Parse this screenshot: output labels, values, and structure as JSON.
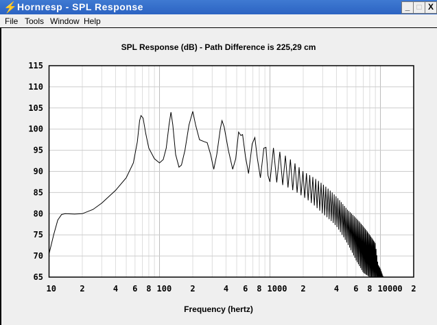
{
  "window": {
    "title": "Hornresp - SPL Response",
    "min": "_",
    "max": "□",
    "close": "X",
    "icon": "lightning-icon"
  },
  "menu": [
    "File",
    "Tools",
    "Window",
    "Help"
  ],
  "chart_data": {
    "type": "line",
    "title": "SPL Response (dB) - Path Difference is 225,29 cm",
    "xlabel": "Frequency (hertz)",
    "ylabel": "",
    "xscale": "log",
    "xlim": [
      10,
      20000
    ],
    "ylim": [
      65,
      115
    ],
    "yticks": [
      "115",
      "110",
      "105",
      "100",
      "95",
      "90",
      "85",
      "80",
      "75",
      "70",
      "65"
    ],
    "xticks": [
      {
        "f": 10,
        "label": "10"
      },
      {
        "f": 20,
        "label": "2"
      },
      {
        "f": 40,
        "label": "4"
      },
      {
        "f": 60,
        "label": "6"
      },
      {
        "f": 80,
        "label": "8"
      },
      {
        "f": 100,
        "label": "100"
      },
      {
        "f": 200,
        "label": "2"
      },
      {
        "f": 400,
        "label": "4"
      },
      {
        "f": 600,
        "label": "6"
      },
      {
        "f": 800,
        "label": "8"
      },
      {
        "f": 1000,
        "label": "1000"
      },
      {
        "f": 2000,
        "label": "2"
      },
      {
        "f": 4000,
        "label": "4"
      },
      {
        "f": 6000,
        "label": "6"
      },
      {
        "f": 8000,
        "label": "8"
      },
      {
        "f": 10000,
        "label": "10000"
      },
      {
        "f": 20000,
        "label": "2"
      }
    ],
    "grid": true,
    "series": [
      {
        "name": "SPL",
        "points": [
          [
            10,
            70.5
          ],
          [
            11,
            75
          ],
          [
            12,
            78.5
          ],
          [
            13,
            79.8
          ],
          [
            14,
            80
          ],
          [
            17,
            79.9
          ],
          [
            20,
            80
          ],
          [
            25,
            81
          ],
          [
            30,
            82.5
          ],
          [
            40,
            85.5
          ],
          [
            50,
            88.5
          ],
          [
            58,
            92
          ],
          [
            63,
            97
          ],
          [
            66,
            102
          ],
          [
            68,
            103.2
          ],
          [
            71,
            102.6
          ],
          [
            75,
            99
          ],
          [
            80,
            95.5
          ],
          [
            90,
            93
          ],
          [
            100,
            92
          ],
          [
            108,
            92.8
          ],
          [
            115,
            95.5
          ],
          [
            122,
            101
          ],
          [
            127,
            104
          ],
          [
            132,
            101
          ],
          [
            140,
            94
          ],
          [
            150,
            91
          ],
          [
            158,
            91.5
          ],
          [
            170,
            95
          ],
          [
            185,
            101
          ],
          [
            200,
            104.2
          ],
          [
            212,
            101
          ],
          [
            230,
            97.5
          ],
          [
            255,
            97
          ],
          [
            270,
            96.8
          ],
          [
            290,
            94
          ],
          [
            310,
            90.5
          ],
          [
            330,
            94
          ],
          [
            355,
            100
          ],
          [
            368,
            102
          ],
          [
            385,
            100.5
          ],
          [
            420,
            95
          ],
          [
            460,
            90.5
          ],
          [
            490,
            93
          ],
          [
            520,
            99.3
          ],
          [
            545,
            98.5
          ],
          [
            565,
            98.7
          ],
          [
            600,
            93.5
          ],
          [
            640,
            89.5
          ],
          [
            690,
            96.5
          ],
          [
            730,
            98
          ],
          [
            770,
            93
          ],
          [
            820,
            88.5
          ],
          [
            880,
            95.5
          ],
          [
            920,
            95.7
          ],
          [
            960,
            89
          ],
          [
            1000,
            87.5
          ]
        ]
      }
    ],
    "comb": {
      "spacing_hz": 152,
      "envelope": [
        [
          1000,
          96,
          88
        ],
        [
          1500,
          93,
          86
        ],
        [
          2000,
          90,
          84
        ],
        [
          3000,
          87,
          80
        ],
        [
          4000,
          84,
          77
        ],
        [
          5000,
          81,
          73
        ],
        [
          6000,
          79,
          69
        ],
        [
          7000,
          77,
          66
        ],
        [
          8000,
          75,
          65
        ],
        [
          9000,
          73,
          65
        ],
        [
          9500,
          68,
          65
        ],
        [
          10000,
          67,
          65
        ],
        [
          10600,
          65,
          65
        ]
      ]
    }
  }
}
